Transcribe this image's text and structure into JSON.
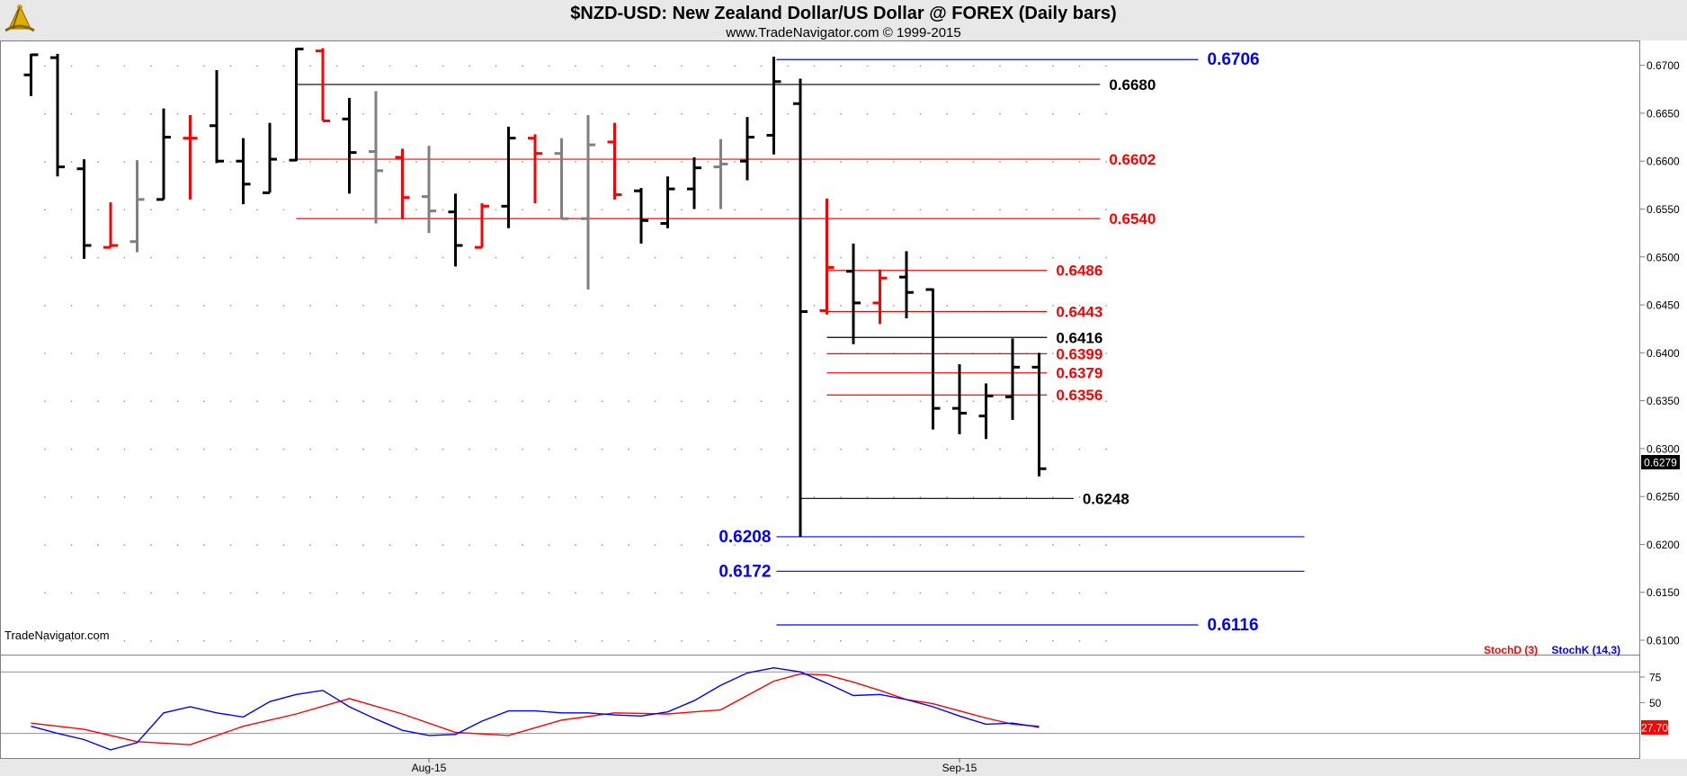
{
  "header": {
    "title": "$NZD-USD:  New Zealand Dollar/US Dollar @ FOREX  (Daily bars)",
    "subtitle": "www.TradeNavigator.com © 1999-2015",
    "watermark": "TradeNavigator.com",
    "logo_icon": "sextant-logo-icon"
  },
  "colors": {
    "up_bar": "#000000",
    "down_bar": "#ff0000",
    "neutral_bar": "#808080",
    "level_black": "#000000",
    "level_red": "#ff0000",
    "level_blue": "#0000ff",
    "stoch_d": "#ff0000",
    "stoch_k": "#0000ff"
  },
  "chart_data": [
    {
      "type": "ohlc",
      "ylim": [
        0.6085,
        0.6725
      ],
      "y_ticks": [
        "0.6700",
        "0.6650",
        "0.6600",
        "0.6550",
        "0.6500",
        "0.6450",
        "0.6400",
        "0.6350",
        "0.6300",
        "0.6250",
        "0.6200",
        "0.6150",
        "0.6100"
      ],
      "x_ticks": [
        {
          "label": "Aug-15",
          "bar": 15
        },
        {
          "label": "Sep-15",
          "bar": 35
        }
      ],
      "last_price": "0.6279",
      "bars": [
        {
          "o": 0.669,
          "h": 0.6712,
          "l": 0.6668,
          "c": 0.6711,
          "color": "up"
        },
        {
          "o": 0.6708,
          "h": 0.6712,
          "l": 0.6584,
          "c": 0.6594,
          "color": "up"
        },
        {
          "o": 0.6592,
          "h": 0.6602,
          "l": 0.6498,
          "c": 0.6512,
          "color": "up"
        },
        {
          "o": 0.651,
          "h": 0.6557,
          "l": 0.651,
          "c": 0.6512,
          "color": "down"
        },
        {
          "o": 0.6516,
          "h": 0.6601,
          "l": 0.6505,
          "c": 0.656,
          "color": "neutral"
        },
        {
          "o": 0.656,
          "h": 0.6655,
          "l": 0.656,
          "c": 0.6625,
          "color": "up"
        },
        {
          "o": 0.6624,
          "h": 0.6648,
          "l": 0.656,
          "c": 0.6624,
          "color": "down"
        },
        {
          "o": 0.6637,
          "h": 0.6695,
          "l": 0.6598,
          "c": 0.66,
          "color": "up"
        },
        {
          "o": 0.66,
          "h": 0.6624,
          "l": 0.6555,
          "c": 0.6576,
          "color": "up"
        },
        {
          "o": 0.6567,
          "h": 0.664,
          "l": 0.6567,
          "c": 0.6602,
          "color": "up"
        },
        {
          "o": 0.6601,
          "h": 0.6718,
          "l": 0.66,
          "c": 0.6717,
          "color": "up"
        },
        {
          "o": 0.6715,
          "h": 0.6718,
          "l": 0.6642,
          "c": 0.6642,
          "color": "down"
        },
        {
          "o": 0.6644,
          "h": 0.6666,
          "l": 0.6566,
          "c": 0.6609,
          "color": "up"
        },
        {
          "o": 0.661,
          "h": 0.6673,
          "l": 0.6535,
          "c": 0.659,
          "color": "neutral"
        },
        {
          "o": 0.6604,
          "h": 0.6613,
          "l": 0.654,
          "c": 0.6562,
          "color": "down"
        },
        {
          "o": 0.6563,
          "h": 0.6616,
          "l": 0.6525,
          "c": 0.6548,
          "color": "neutral"
        },
        {
          "o": 0.6547,
          "h": 0.6566,
          "l": 0.649,
          "c": 0.6512,
          "color": "up"
        },
        {
          "o": 0.651,
          "h": 0.6556,
          "l": 0.651,
          "c": 0.6553,
          "color": "down"
        },
        {
          "o": 0.6553,
          "h": 0.6636,
          "l": 0.653,
          "c": 0.6624,
          "color": "up"
        },
        {
          "o": 0.6624,
          "h": 0.6628,
          "l": 0.6556,
          "c": 0.6608,
          "color": "down"
        },
        {
          "o": 0.6608,
          "h": 0.6624,
          "l": 0.654,
          "c": 0.654,
          "color": "neutral"
        },
        {
          "o": 0.654,
          "h": 0.6648,
          "l": 0.6466,
          "c": 0.6617,
          "color": "neutral"
        },
        {
          "o": 0.662,
          "h": 0.664,
          "l": 0.656,
          "c": 0.6565,
          "color": "down"
        },
        {
          "o": 0.6569,
          "h": 0.6572,
          "l": 0.6514,
          "c": 0.6538,
          "color": "up"
        },
        {
          "o": 0.6535,
          "h": 0.6584,
          "l": 0.653,
          "c": 0.6571,
          "color": "up"
        },
        {
          "o": 0.6571,
          "h": 0.6604,
          "l": 0.655,
          "c": 0.6593,
          "color": "up"
        },
        {
          "o": 0.6594,
          "h": 0.6623,
          "l": 0.655,
          "c": 0.6597,
          "color": "neutral"
        },
        {
          "o": 0.66,
          "h": 0.6646,
          "l": 0.658,
          "c": 0.6625,
          "color": "up"
        },
        {
          "o": 0.6627,
          "h": 0.6709,
          "l": 0.6607,
          "c": 0.6683,
          "color": "up"
        },
        {
          "o": 0.666,
          "h": 0.6686,
          "l": 0.6208,
          "c": 0.6443,
          "color": "up"
        },
        {
          "o": 0.6444,
          "h": 0.6561,
          "l": 0.644,
          "c": 0.6489,
          "color": "down"
        },
        {
          "o": 0.6485,
          "h": 0.6514,
          "l": 0.6409,
          "c": 0.6452,
          "color": "up"
        },
        {
          "o": 0.6452,
          "h": 0.6487,
          "l": 0.643,
          "c": 0.6478,
          "color": "down"
        },
        {
          "o": 0.6479,
          "h": 0.6506,
          "l": 0.6436,
          "c": 0.6463,
          "color": "up"
        },
        {
          "o": 0.6466,
          "h": 0.6467,
          "l": 0.632,
          "c": 0.6342,
          "color": "up"
        },
        {
          "o": 0.6342,
          "h": 0.6388,
          "l": 0.6315,
          "c": 0.6337,
          "color": "up"
        },
        {
          "o": 0.6334,
          "h": 0.6368,
          "l": 0.631,
          "c": 0.6355,
          "color": "up"
        },
        {
          "o": 0.6354,
          "h": 0.6415,
          "l": 0.633,
          "c": 0.6385,
          "color": "up"
        },
        {
          "o": 0.6385,
          "h": 0.64,
          "l": 0.6271,
          "c": 0.6279,
          "color": "up"
        }
      ],
      "levels": [
        {
          "value": 0.6706,
          "label": "0.6706",
          "color": "blue",
          "from_bar": 28.1,
          "to_bar": 44.0,
          "label_side": "right"
        },
        {
          "value": 0.668,
          "label": "0.6680",
          "color": "black",
          "from_bar": 10.0,
          "to_bar": 40.3,
          "label_side": "right"
        },
        {
          "value": 0.6602,
          "label": "0.6602",
          "color": "red",
          "from_bar": 10.0,
          "to_bar": 40.3,
          "label_side": "right"
        },
        {
          "value": 0.654,
          "label": "0.6540",
          "color": "red",
          "from_bar": 10.0,
          "to_bar": 40.3,
          "label_side": "right"
        },
        {
          "value": 0.6486,
          "label": "0.6486",
          "color": "red",
          "from_bar": 30.0,
          "to_bar": 38.3,
          "label_side": "right"
        },
        {
          "value": 0.6443,
          "label": "0.6443",
          "color": "red",
          "from_bar": 30.0,
          "to_bar": 38.3,
          "label_side": "right"
        },
        {
          "value": 0.6416,
          "label": "0.6416",
          "color": "black",
          "from_bar": 30.0,
          "to_bar": 38.3,
          "label_side": "right"
        },
        {
          "value": 0.6399,
          "label": "0.6399",
          "color": "red",
          "from_bar": 30.0,
          "to_bar": 38.3,
          "label_side": "right"
        },
        {
          "value": 0.6379,
          "label": "0.6379",
          "color": "red",
          "from_bar": 30.0,
          "to_bar": 38.3,
          "label_side": "right"
        },
        {
          "value": 0.6356,
          "label": "0.6356",
          "color": "red",
          "from_bar": 30.0,
          "to_bar": 38.3,
          "label_side": "right"
        },
        {
          "value": 0.6248,
          "label": "0.6248",
          "color": "black",
          "from_bar": 29.0,
          "to_bar": 39.3,
          "label_side": "right"
        },
        {
          "value": 0.6208,
          "label": "0.6208",
          "color": "blue",
          "from_bar": 28.1,
          "to_bar": 48.0,
          "label_side": "left"
        },
        {
          "value": 0.6172,
          "label": "0.6172",
          "color": "blue",
          "from_bar": 28.1,
          "to_bar": 48.0,
          "label_side": "left"
        },
        {
          "value": 0.6116,
          "label": "0.6116",
          "color": "blue",
          "from_bar": 28.1,
          "to_bar": 44.0,
          "label_side": "right"
        }
      ]
    },
    {
      "type": "line",
      "ylim": [
        -4,
        96
      ],
      "y_ticks": [
        "75",
        "50"
      ],
      "reference_lines": [
        80,
        20
      ],
      "last_value": "27.70",
      "series": [
        {
          "name": "StochD (3)",
          "color": "red",
          "x": [
            0,
            2,
            4,
            6,
            8,
            10,
            12,
            14,
            16,
            18,
            20,
            22,
            24,
            26,
            28,
            29,
            30,
            31,
            32,
            33,
            34,
            35,
            36,
            37,
            38
          ],
          "values": [
            30,
            24,
            12,
            9,
            27,
            39,
            54,
            39,
            21,
            18,
            33,
            40,
            39,
            43,
            71,
            78,
            77,
            70,
            62,
            53,
            49,
            42,
            35,
            29,
            27
          ]
        },
        {
          "name": "StochK (14,3)",
          "color": "blue",
          "x": [
            0,
            1,
            2,
            3,
            4,
            5,
            6,
            7,
            8,
            9,
            10,
            11,
            12,
            13,
            14,
            15,
            16,
            17,
            18,
            19,
            20,
            21,
            22,
            23,
            24,
            25,
            26,
            27,
            28,
            29,
            30,
            31,
            32,
            33,
            34,
            35,
            36,
            37,
            38
          ],
          "values": [
            27,
            20,
            14,
            4,
            11,
            40,
            46,
            40,
            36,
            51,
            58,
            62,
            46,
            34,
            23,
            18,
            19,
            32,
            42,
            42,
            40,
            40,
            38,
            37,
            41,
            52,
            67,
            79,
            84,
            80,
            69,
            57,
            58,
            53,
            46,
            37,
            29,
            30,
            26
          ]
        }
      ]
    }
  ]
}
